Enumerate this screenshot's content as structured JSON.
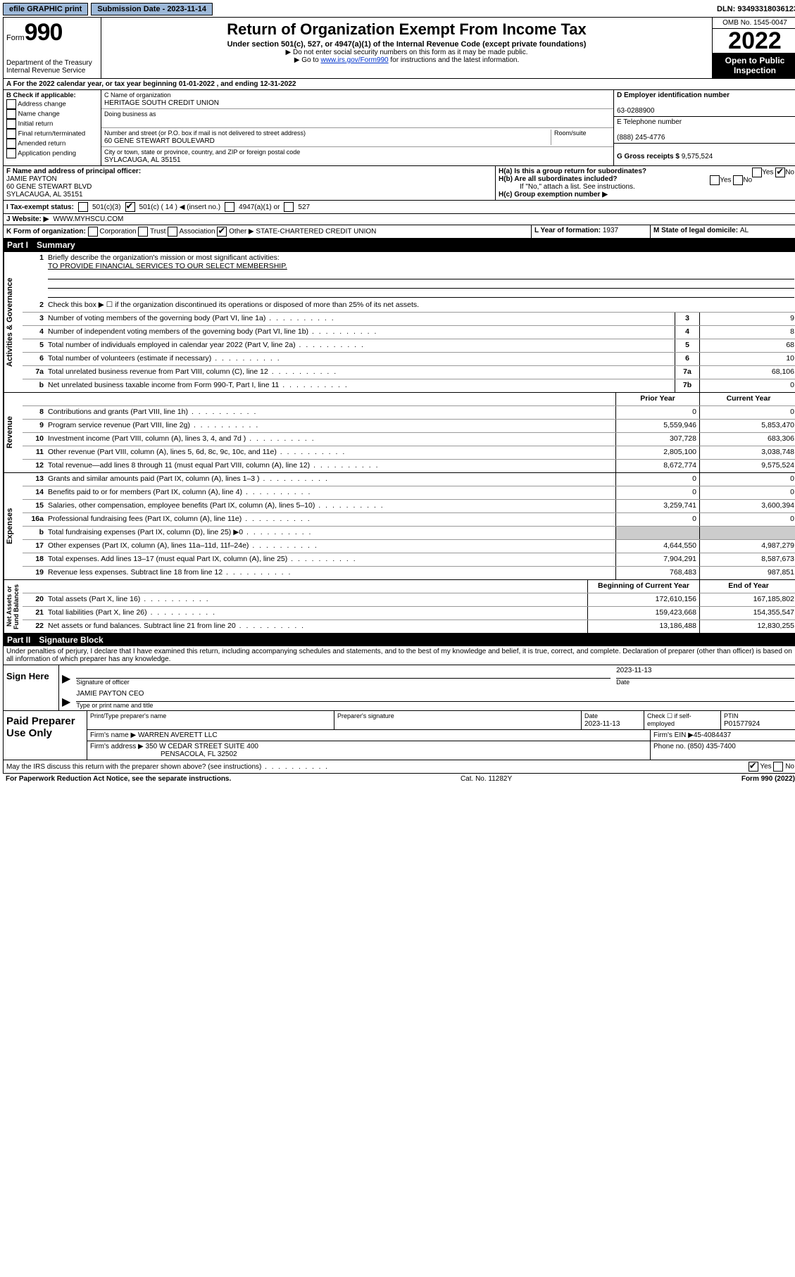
{
  "topbar": {
    "efile": "efile GRAPHIC print",
    "submission_label": "Submission Date - 2023-11-14",
    "dln": "DLN: 93493318036123"
  },
  "header": {
    "form_word": "Form",
    "form_no": "990",
    "dept": "Department of the Treasury",
    "irs": "Internal Revenue Service",
    "title": "Return of Organization Exempt From Income Tax",
    "subtitle": "Under section 501(c), 527, or 4947(a)(1) of the Internal Revenue Code (except private foundations)",
    "note1": "▶ Do not enter social security numbers on this form as it may be made public.",
    "note2_pre": "▶ Go to ",
    "note2_link": "www.irs.gov/Form990",
    "note2_post": " for instructions and the latest information.",
    "omb": "OMB No. 1545-0047",
    "year": "2022",
    "open": "Open to Public Inspection"
  },
  "row_a": "A For the 2022 calendar year, or tax year beginning 01-01-2022    , and ending 12-31-2022",
  "col_b": {
    "hdr": "B Check if applicable:",
    "opts": [
      "Address change",
      "Name change",
      "Initial return",
      "Final return/terminated",
      "Amended return",
      "Application pending"
    ]
  },
  "col_c": {
    "name_lbl": "C Name of organization",
    "name": "HERITAGE SOUTH CREDIT UNION",
    "dba_lbl": "Doing business as",
    "dba": "",
    "addr_lbl": "Number and street (or P.O. box if mail is not delivered to street address)",
    "room_lbl": "Room/suite",
    "addr": "60 GENE STEWART BOULEVARD",
    "city_lbl": "City or town, state or province, country, and ZIP or foreign postal code",
    "city": "SYLACAUGA, AL  35151"
  },
  "col_d": {
    "ein_lbl": "D Employer identification number",
    "ein": "63-0288900",
    "tel_lbl": "E Telephone number",
    "tel": "(888) 245-4776",
    "gross_lbl": "G Gross receipts $ ",
    "gross": "9,575,524"
  },
  "row_f": {
    "f_lbl": "F  Name and address of principal officer:",
    "f_name": "JAMIE PAYTON",
    "f_addr1": "60 GENE STEWART BLVD",
    "f_addr2": "SYLACAUGA, AL  35151",
    "ha": "H(a)  Is this a group return for subordinates?",
    "ha_ans": "No",
    "hb": "H(b)  Are all subordinates included?",
    "hb_note": "If \"No,\" attach a list. See instructions.",
    "hc": "H(c)  Group exemption number ▶"
  },
  "row_i": {
    "lbl": "I   Tax-exempt status:",
    "o1": "501(c)(3)",
    "o2": "501(c) ( 14 ) ◀ (insert no.)",
    "o3": "4947(a)(1) or",
    "o4": "527"
  },
  "row_j": {
    "lbl": "J   Website: ▶",
    "val": "WWW.MYHSCU.COM"
  },
  "row_k": {
    "lbl": "K Form of organization:",
    "opts": [
      "Corporation",
      "Trust",
      "Association",
      "Other ▶"
    ],
    "other_val": "STATE-CHARTERED CREDIT UNION",
    "l_lbl": "L Year of formation: ",
    "l_val": "1937",
    "m_lbl": "M State of legal domicile: ",
    "m_val": "AL"
  },
  "part1": {
    "hdr_part": "Part I",
    "hdr_title": "Summary",
    "q1": "Briefly describe the organization's mission or most significant activities:",
    "q1_ans": "TO PROVIDE FINANCIAL SERVICES TO OUR SELECT MEMBERSHIP.",
    "q2": "Check this box ▶ ☐  if the organization discontinued its operations or disposed of more than 25% of its net assets.",
    "lines_gov": [
      {
        "n": "3",
        "d": "Number of voting members of the governing body (Part VI, line 1a)",
        "b": "3",
        "v": "9"
      },
      {
        "n": "4",
        "d": "Number of independent voting members of the governing body (Part VI, line 1b)",
        "b": "4",
        "v": "8"
      },
      {
        "n": "5",
        "d": "Total number of individuals employed in calendar year 2022 (Part V, line 2a)",
        "b": "5",
        "v": "68"
      },
      {
        "n": "6",
        "d": "Total number of volunteers (estimate if necessary)",
        "b": "6",
        "v": "10"
      },
      {
        "n": "7a",
        "d": "Total unrelated business revenue from Part VIII, column (C), line 12",
        "b": "7a",
        "v": "68,106"
      },
      {
        "n": "b",
        "d": "Net unrelated business taxable income from Form 990-T, Part I, line 11",
        "b": "7b",
        "v": "0"
      }
    ],
    "hdr_prior": "Prior Year",
    "hdr_curr": "Current Year",
    "lines_rev": [
      {
        "n": "8",
        "d": "Contributions and grants (Part VIII, line 1h)",
        "p": "0",
        "c": "0"
      },
      {
        "n": "9",
        "d": "Program service revenue (Part VIII, line 2g)",
        "p": "5,559,946",
        "c": "5,853,470"
      },
      {
        "n": "10",
        "d": "Investment income (Part VIII, column (A), lines 3, 4, and 7d )",
        "p": "307,728",
        "c": "683,306"
      },
      {
        "n": "11",
        "d": "Other revenue (Part VIII, column (A), lines 5, 6d, 8c, 9c, 10c, and 11e)",
        "p": "2,805,100",
        "c": "3,038,748"
      },
      {
        "n": "12",
        "d": "Total revenue—add lines 8 through 11 (must equal Part VIII, column (A), line 12)",
        "p": "8,672,774",
        "c": "9,575,524"
      }
    ],
    "lines_exp": [
      {
        "n": "13",
        "d": "Grants and similar amounts paid (Part IX, column (A), lines 1–3 )",
        "p": "0",
        "c": "0"
      },
      {
        "n": "14",
        "d": "Benefits paid to or for members (Part IX, column (A), line 4)",
        "p": "0",
        "c": "0"
      },
      {
        "n": "15",
        "d": "Salaries, other compensation, employee benefits (Part IX, column (A), lines 5–10)",
        "p": "3,259,741",
        "c": "3,600,394"
      },
      {
        "n": "16a",
        "d": "Professional fundraising fees (Part IX, column (A), line 11e)",
        "p": "0",
        "c": "0"
      },
      {
        "n": "b",
        "d": "Total fundraising expenses (Part IX, column (D), line 25) ▶0",
        "p": "",
        "c": "",
        "shade": true
      },
      {
        "n": "17",
        "d": "Other expenses (Part IX, column (A), lines 11a–11d, 11f–24e)",
        "p": "4,644,550",
        "c": "4,987,279"
      },
      {
        "n": "18",
        "d": "Total expenses. Add lines 13–17 (must equal Part IX, column (A), line 25)",
        "p": "7,904,291",
        "c": "8,587,673"
      },
      {
        "n": "19",
        "d": "Revenue less expenses. Subtract line 18 from line 12",
        "p": "768,483",
        "c": "987,851"
      }
    ],
    "hdr_beg": "Beginning of Current Year",
    "hdr_end": "End of Year",
    "lines_net": [
      {
        "n": "20",
        "d": "Total assets (Part X, line 16)",
        "p": "172,610,156",
        "c": "167,185,802"
      },
      {
        "n": "21",
        "d": "Total liabilities (Part X, line 26)",
        "p": "159,423,668",
        "c": "154,355,547"
      },
      {
        "n": "22",
        "d": "Net assets or fund balances. Subtract line 21 from line 20",
        "p": "13,186,488",
        "c": "12,830,255"
      }
    ]
  },
  "part2": {
    "hdr_part": "Part II",
    "hdr_title": "Signature Block",
    "decl": "Under penalties of perjury, I declare that I have examined this return, including accompanying schedules and statements, and to the best of my knowledge and belief, it is true, correct, and complete. Declaration of preparer (other than officer) is based on all information of which preparer has any knowledge.",
    "sign_here": "Sign Here",
    "sig_officer_lbl": "Signature of officer",
    "sig_date": "2023-11-13",
    "date_lbl": "Date",
    "officer_name": "JAMIE PAYTON  CEO",
    "officer_lbl": "Type or print name and title",
    "paid": "Paid Preparer Use Only",
    "pp_name_lbl": "Print/Type preparer's name",
    "pp_sig_lbl": "Preparer's signature",
    "pp_date_lbl": "Date",
    "pp_date": "2023-11-13",
    "pp_check_lbl": "Check ☐ if self-employed",
    "pp_ptin_lbl": "PTIN",
    "pp_ptin": "P01577924",
    "firm_name_lbl": "Firm's name     ▶",
    "firm_name": "WARREN AVERETT LLC",
    "firm_ein_lbl": "Firm's EIN ▶",
    "firm_ein": "45-4084437",
    "firm_addr_lbl": "Firm's address ▶",
    "firm_addr1": "350 W CEDAR STREET SUITE 400",
    "firm_addr2": "PENSACOLA, FL  32502",
    "phone_lbl": "Phone no. ",
    "phone": "(850) 435-7400",
    "discuss": "May the IRS discuss this return with the preparer shown above? (see instructions)",
    "discuss_yes": "Yes",
    "discuss_no": "No"
  },
  "footer": {
    "pra": "For Paperwork Reduction Act Notice, see the separate instructions.",
    "cat": "Cat. No. 11282Y",
    "form": "Form 990 (2022)"
  }
}
